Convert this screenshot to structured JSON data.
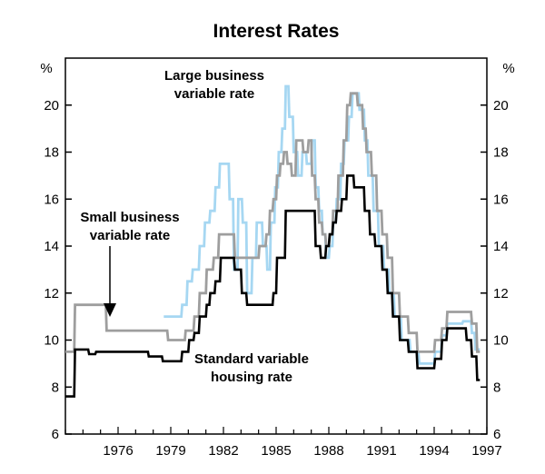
{
  "chart_data": {
    "type": "line",
    "title": "Interest Rates",
    "ylabel_left": "%",
    "ylabel_right": "%",
    "ylim": [
      6,
      22
    ],
    "yticks": [
      6,
      8,
      10,
      12,
      14,
      16,
      18,
      20
    ],
    "xlim": [
      1973.0,
      1997.0
    ],
    "xticks": [
      1976,
      1979,
      1982,
      1985,
      1988,
      1991,
      1994,
      1997
    ],
    "annotations": {
      "large": [
        "Large business",
        "variable rate"
      ],
      "small": [
        "Small business",
        "variable rate"
      ],
      "housing": [
        "Standard variable",
        "housing rate"
      ]
    },
    "colors": {
      "housing": "#000000",
      "small": "#9e9e9e",
      "large": "#a6d7f2",
      "axis": "#000000"
    },
    "series": [
      {
        "name": "Standard variable housing rate",
        "key": "housing",
        "x": [
          1973.0,
          1973.5,
          1973.55,
          1974.3,
          1974.35,
          1974.7,
          1974.75,
          1977.7,
          1977.75,
          1978.5,
          1978.55,
          1979.6,
          1979.65,
          1980.0,
          1980.05,
          1980.3,
          1980.35,
          1980.6,
          1980.65,
          1981.0,
          1981.05,
          1981.2,
          1981.25,
          1981.5,
          1981.55,
          1981.8,
          1981.85,
          1982.6,
          1982.65,
          1983.0,
          1983.05,
          1983.3,
          1983.35,
          1983.8,
          1983.85,
          1984.8,
          1984.85,
          1985.0,
          1985.05,
          1985.5,
          1985.55,
          1986.2,
          1986.25,
          1987.2,
          1987.25,
          1987.5,
          1987.55,
          1987.8,
          1987.85,
          1988.0,
          1988.05,
          1988.2,
          1988.25,
          1988.4,
          1988.45,
          1988.7,
          1988.75,
          1989.0,
          1989.05,
          1989.4,
          1989.45,
          1990.0,
          1990.05,
          1990.3,
          1990.35,
          1990.6,
          1990.65,
          1991.0,
          1991.05,
          1991.3,
          1991.35,
          1991.6,
          1991.65,
          1992.0,
          1992.05,
          1992.5,
          1992.55,
          1993.0,
          1993.05,
          1994.0,
          1994.05,
          1994.4,
          1994.45,
          1994.7,
          1994.75,
          1995.8,
          1995.85,
          1996.1,
          1996.15,
          1996.4,
          1996.45,
          1996.6
        ],
        "values": [
          7.6,
          7.6,
          9.6,
          9.6,
          9.4,
          9.4,
          9.5,
          9.5,
          9.3,
          9.3,
          9.1,
          9.1,
          9.5,
          9.5,
          10.0,
          10.0,
          10.3,
          10.3,
          11.0,
          11.0,
          11.5,
          11.5,
          12.0,
          12.0,
          12.5,
          12.5,
          13.5,
          13.5,
          13.0,
          13.0,
          12.0,
          12.0,
          11.5,
          11.5,
          11.5,
          11.5,
          12.0,
          12.0,
          13.5,
          13.5,
          15.5,
          15.5,
          15.5,
          15.5,
          14.0,
          14.0,
          13.5,
          13.5,
          14.0,
          14.0,
          14.5,
          14.5,
          15.0,
          15.0,
          15.5,
          15.5,
          16.0,
          16.0,
          17.0,
          17.0,
          16.5,
          16.5,
          15.5,
          15.5,
          14.5,
          14.5,
          14.0,
          14.0,
          13.0,
          13.0,
          12.0,
          12.0,
          11.0,
          11.0,
          10.0,
          10.0,
          9.5,
          9.5,
          8.8,
          8.8,
          9.2,
          9.2,
          10.0,
          10.0,
          10.5,
          10.5,
          10.0,
          10.0,
          9.3,
          9.3,
          8.3,
          8.3
        ]
      },
      {
        "name": "Small business variable rate",
        "key": "small",
        "x": [
          1973.0,
          1973.5,
          1973.55,
          1975.3,
          1975.35,
          1978.8,
          1978.85,
          1979.8,
          1979.85,
          1980.3,
          1980.35,
          1980.6,
          1980.65,
          1981.0,
          1981.05,
          1981.4,
          1981.45,
          1981.7,
          1981.75,
          1982.6,
          1982.65,
          1984.0,
          1984.05,
          1984.4,
          1984.45,
          1984.6,
          1984.65,
          1984.8,
          1984.85,
          1985.0,
          1985.05,
          1985.2,
          1985.25,
          1985.4,
          1985.45,
          1985.6,
          1985.65,
          1985.85,
          1985.9,
          1986.1,
          1986.15,
          1986.5,
          1986.55,
          1986.8,
          1986.85,
          1987.0,
          1987.05,
          1987.2,
          1987.25,
          1987.4,
          1987.45,
          1987.6,
          1987.65,
          1987.8,
          1987.85,
          1988.0,
          1988.05,
          1988.2,
          1988.25,
          1988.5,
          1988.55,
          1988.8,
          1988.85,
          1989.0,
          1989.05,
          1989.2,
          1989.25,
          1989.6,
          1989.65,
          1989.9,
          1989.95,
          1990.1,
          1990.15,
          1990.4,
          1990.45,
          1990.7,
          1990.75,
          1991.0,
          1991.05,
          1991.3,
          1991.35,
          1991.6,
          1991.65,
          1992.0,
          1992.05,
          1992.5,
          1992.55,
          1993.0,
          1993.05,
          1994.0,
          1994.05,
          1994.4,
          1994.45,
          1994.7,
          1994.75,
          1995.7,
          1995.75,
          1996.1,
          1996.15,
          1996.4,
          1996.45,
          1996.6
        ],
        "values": [
          9.5,
          9.5,
          11.5,
          11.5,
          10.4,
          10.4,
          10.0,
          10.0,
          10.4,
          10.4,
          11.0,
          11.0,
          12.0,
          12.0,
          13.0,
          13.0,
          13.5,
          13.5,
          14.5,
          14.5,
          13.5,
          13.5,
          14.0,
          14.0,
          14.5,
          14.5,
          15.5,
          15.5,
          16.0,
          16.0,
          17.0,
          17.0,
          17.5,
          17.5,
          18.0,
          18.0,
          17.5,
          17.5,
          17.0,
          17.0,
          18.5,
          18.5,
          18.0,
          18.0,
          18.5,
          18.5,
          17.0,
          17.0,
          16.0,
          16.0,
          15.0,
          15.0,
          14.5,
          14.5,
          14.0,
          14.0,
          14.5,
          14.5,
          15.5,
          15.5,
          17.0,
          17.0,
          18.5,
          18.5,
          20.0,
          20.0,
          20.5,
          20.5,
          20.0,
          20.0,
          19.0,
          19.0,
          18.0,
          18.0,
          17.0,
          17.0,
          15.5,
          15.5,
          14.5,
          14.5,
          13.5,
          13.5,
          12.0,
          12.0,
          11.0,
          11.0,
          10.3,
          10.3,
          9.5,
          9.5,
          10.0,
          10.0,
          10.5,
          10.5,
          11.2,
          11.2,
          11.2,
          11.2,
          10.7,
          10.7,
          9.5,
          9.5
        ]
      },
      {
        "name": "Large business variable rate",
        "key": "large",
        "x": [
          1978.6,
          1979.6,
          1979.65,
          1979.9,
          1979.95,
          1980.2,
          1980.25,
          1980.6,
          1980.65,
          1980.9,
          1980.95,
          1981.2,
          1981.25,
          1981.5,
          1981.55,
          1981.75,
          1981.8,
          1982.3,
          1982.35,
          1982.55,
          1982.6,
          1982.8,
          1982.85,
          1983.05,
          1983.1,
          1983.3,
          1983.35,
          1983.6,
          1983.65,
          1983.85,
          1983.9,
          1984.2,
          1984.25,
          1984.45,
          1984.5,
          1984.65,
          1984.7,
          1984.9,
          1984.95,
          1985.1,
          1985.15,
          1985.3,
          1985.35,
          1985.5,
          1985.55,
          1985.7,
          1985.75,
          1985.95,
          1986.0,
          1986.2,
          1986.25,
          1986.45,
          1986.5,
          1986.7,
          1986.75,
          1987.0,
          1987.05,
          1987.2,
          1987.25,
          1987.4,
          1987.45,
          1987.6,
          1987.65,
          1987.8,
          1987.85,
          1988.0,
          1988.05,
          1988.2,
          1988.25,
          1988.4,
          1988.45,
          1988.65,
          1988.7,
          1988.85,
          1988.9,
          1989.1,
          1989.15,
          1989.3,
          1989.35,
          1989.7,
          1989.75,
          1990.0,
          1990.05,
          1990.2,
          1990.25,
          1990.5,
          1990.55,
          1990.8,
          1990.85,
          1991.1,
          1991.15,
          1991.4,
          1991.45,
          1991.7,
          1991.75,
          1992.1,
          1992.15,
          1992.6,
          1992.65,
          1993.1,
          1993.15,
          1994.0,
          1994.05,
          1994.4,
          1994.45,
          1994.7,
          1994.75,
          1995.6,
          1995.65,
          1996.1,
          1996.15,
          1996.3,
          1996.35,
          1996.6
        ],
        "values": [
          11.0,
          11.0,
          11.5,
          11.5,
          12.5,
          12.5,
          13.0,
          13.0,
          14.0,
          14.0,
          15.0,
          15.0,
          15.5,
          15.5,
          16.5,
          16.5,
          17.5,
          17.5,
          16.0,
          16.0,
          13.0,
          13.0,
          16.0,
          16.0,
          15.0,
          15.0,
          12.0,
          12.0,
          13.5,
          13.5,
          15.0,
          15.0,
          14.0,
          14.0,
          13.0,
          13.0,
          15.0,
          15.0,
          16.5,
          16.5,
          18.0,
          18.0,
          19.0,
          19.0,
          20.8,
          20.8,
          19.5,
          19.5,
          18.0,
          18.0,
          17.0,
          17.0,
          18.0,
          18.0,
          17.5,
          17.5,
          18.5,
          18.5,
          16.5,
          16.5,
          15.5,
          15.5,
          14.5,
          14.5,
          13.5,
          13.5,
          14.0,
          14.0,
          15.0,
          15.0,
          16.0,
          16.0,
          17.5,
          17.5,
          18.5,
          18.5,
          19.5,
          19.5,
          20.5,
          20.5,
          19.8,
          19.8,
          18.5,
          18.5,
          17.0,
          17.0,
          15.5,
          15.5,
          14.0,
          14.0,
          13.0,
          13.0,
          12.0,
          12.0,
          11.0,
          11.0,
          10.0,
          10.0,
          9.5,
          9.5,
          9.0,
          9.0,
          9.5,
          9.5,
          10.2,
          10.2,
          10.7,
          10.7,
          10.8,
          10.8,
          10.3,
          10.3,
          9.6,
          9.6
        ]
      }
    ]
  }
}
